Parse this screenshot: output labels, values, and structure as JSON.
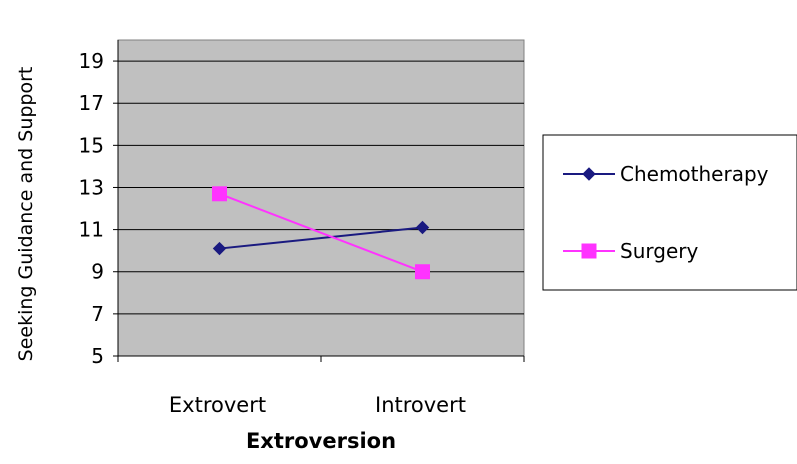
{
  "chart_data": {
    "type": "line",
    "title": "",
    "xlabel": "Extroversion",
    "ylabel": "Seeking Guidance and Support",
    "categories": [
      "Extrovert",
      "Introvert"
    ],
    "ylim": [
      5,
      20
    ],
    "yticks": [
      5,
      7,
      9,
      11,
      13,
      15,
      17,
      19
    ],
    "grid": true,
    "legend_position": "right",
    "plot_background": "#c0c0c0",
    "series": [
      {
        "name": "Chemotherapy",
        "values": [
          10.1,
          11.1
        ],
        "color": "#1a1a80",
        "marker": "diamond"
      },
      {
        "name": "Surgery",
        "values": [
          12.7,
          9.0
        ],
        "color": "#ff33ff",
        "marker": "square"
      }
    ]
  }
}
